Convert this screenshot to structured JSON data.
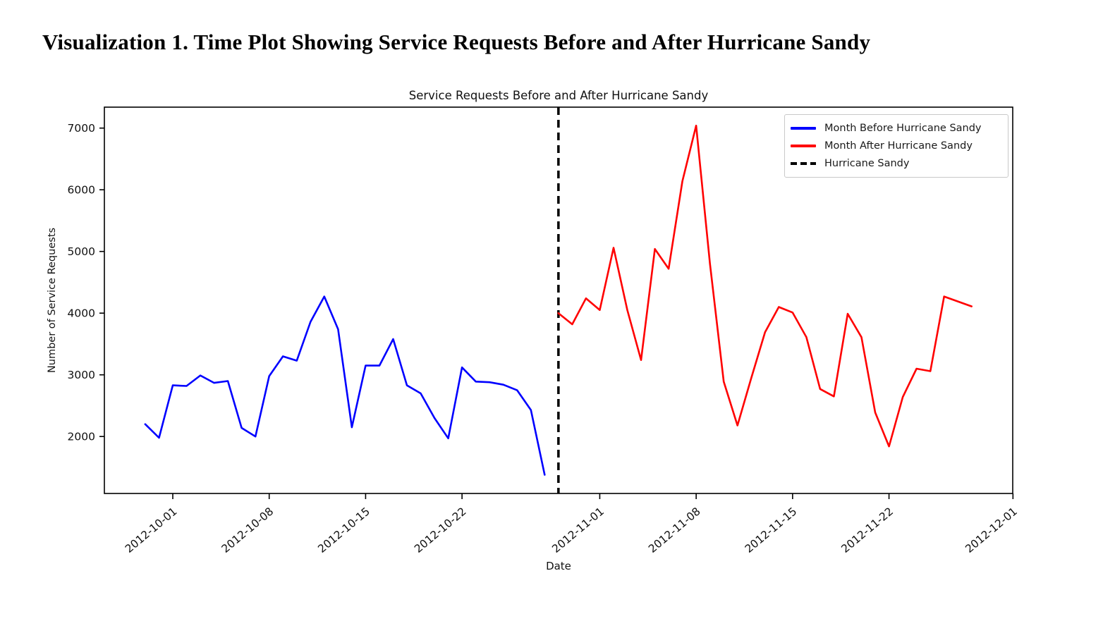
{
  "page": {
    "title": "Visualization 1. Time Plot Showing Service Requests Before and After Hurricane Sandy"
  },
  "chart": {
    "title": "Service Requests Before and After Hurricane Sandy",
    "xlabel": "Date",
    "ylabel": "Number of Service Requests"
  },
  "legend": {
    "items": [
      {
        "label": "Month Before Hurricane Sandy",
        "color": "#0000ff",
        "style": "solid"
      },
      {
        "label": "Month After Hurricane Sandy",
        "color": "#ff0000",
        "style": "solid"
      },
      {
        "label": "Hurricane Sandy",
        "color": "#000000",
        "style": "dashed"
      }
    ]
  },
  "chart_data": {
    "type": "line",
    "title": "Service Requests Before and After Hurricane Sandy",
    "xlabel": "Date",
    "ylabel": "Number of Service Requests",
    "ylim": [
      1080,
      7340
    ],
    "xlim": [
      "2012-09-26",
      "2012-12-01"
    ],
    "y_ticks": [
      2000,
      3000,
      4000,
      5000,
      6000,
      7000
    ],
    "x_ticks": [
      "2012-10-01",
      "2012-10-08",
      "2012-10-15",
      "2012-10-22",
      "2012-11-01",
      "2012-11-08",
      "2012-11-15",
      "2012-11-22",
      "2012-12-01"
    ],
    "grid": false,
    "legend_position": "upper right",
    "series": [
      {
        "name": "Month Before Hurricane Sandy",
        "color": "#0000ff",
        "dates": [
          "2012-09-29",
          "2012-09-30",
          "2012-10-01",
          "2012-10-02",
          "2012-10-03",
          "2012-10-04",
          "2012-10-05",
          "2012-10-06",
          "2012-10-07",
          "2012-10-08",
          "2012-10-09",
          "2012-10-10",
          "2012-10-11",
          "2012-10-12",
          "2012-10-13",
          "2012-10-14",
          "2012-10-15",
          "2012-10-16",
          "2012-10-17",
          "2012-10-18",
          "2012-10-19",
          "2012-10-20",
          "2012-10-21",
          "2012-10-22",
          "2012-10-23",
          "2012-10-24",
          "2012-10-25",
          "2012-10-26",
          "2012-10-27",
          "2012-10-28"
        ],
        "values": [
          2200,
          1980,
          2830,
          2820,
          2990,
          2870,
          2900,
          2140,
          2000,
          2980,
          3300,
          3230,
          3860,
          4270,
          3740,
          2150,
          3150,
          3150,
          3580,
          2830,
          2700,
          2300,
          1970,
          3120,
          2890,
          2880,
          2840,
          2750,
          2430,
          1380
        ]
      },
      {
        "name": "Month After Hurricane Sandy",
        "color": "#ff0000",
        "dates": [
          "2012-10-29",
          "2012-10-30",
          "2012-10-31",
          "2012-11-01",
          "2012-11-02",
          "2012-11-03",
          "2012-11-04",
          "2012-11-05",
          "2012-11-06",
          "2012-11-07",
          "2012-11-08",
          "2012-11-09",
          "2012-11-10",
          "2012-11-11",
          "2012-11-12",
          "2012-11-13",
          "2012-11-14",
          "2012-11-15",
          "2012-11-16",
          "2012-11-17",
          "2012-11-18",
          "2012-11-19",
          "2012-11-20",
          "2012-11-21",
          "2012-11-22",
          "2012-11-23",
          "2012-11-24",
          "2012-11-25",
          "2012-11-26",
          "2012-11-27",
          "2012-11-28"
        ],
        "values": [
          4000,
          3820,
          4240,
          4050,
          5060,
          4050,
          3240,
          5040,
          4720,
          6140,
          7040,
          4800,
          2890,
          2180,
          2950,
          3690,
          4100,
          4010,
          3610,
          2770,
          2650,
          3990,
          3610,
          2390,
          1840,
          2640,
          3100,
          3060,
          4270,
          4190,
          4110
        ]
      }
    ],
    "vline": {
      "label": "Hurricane Sandy",
      "date": "2012-10-29",
      "color": "#000000",
      "style": "dashed"
    }
  }
}
